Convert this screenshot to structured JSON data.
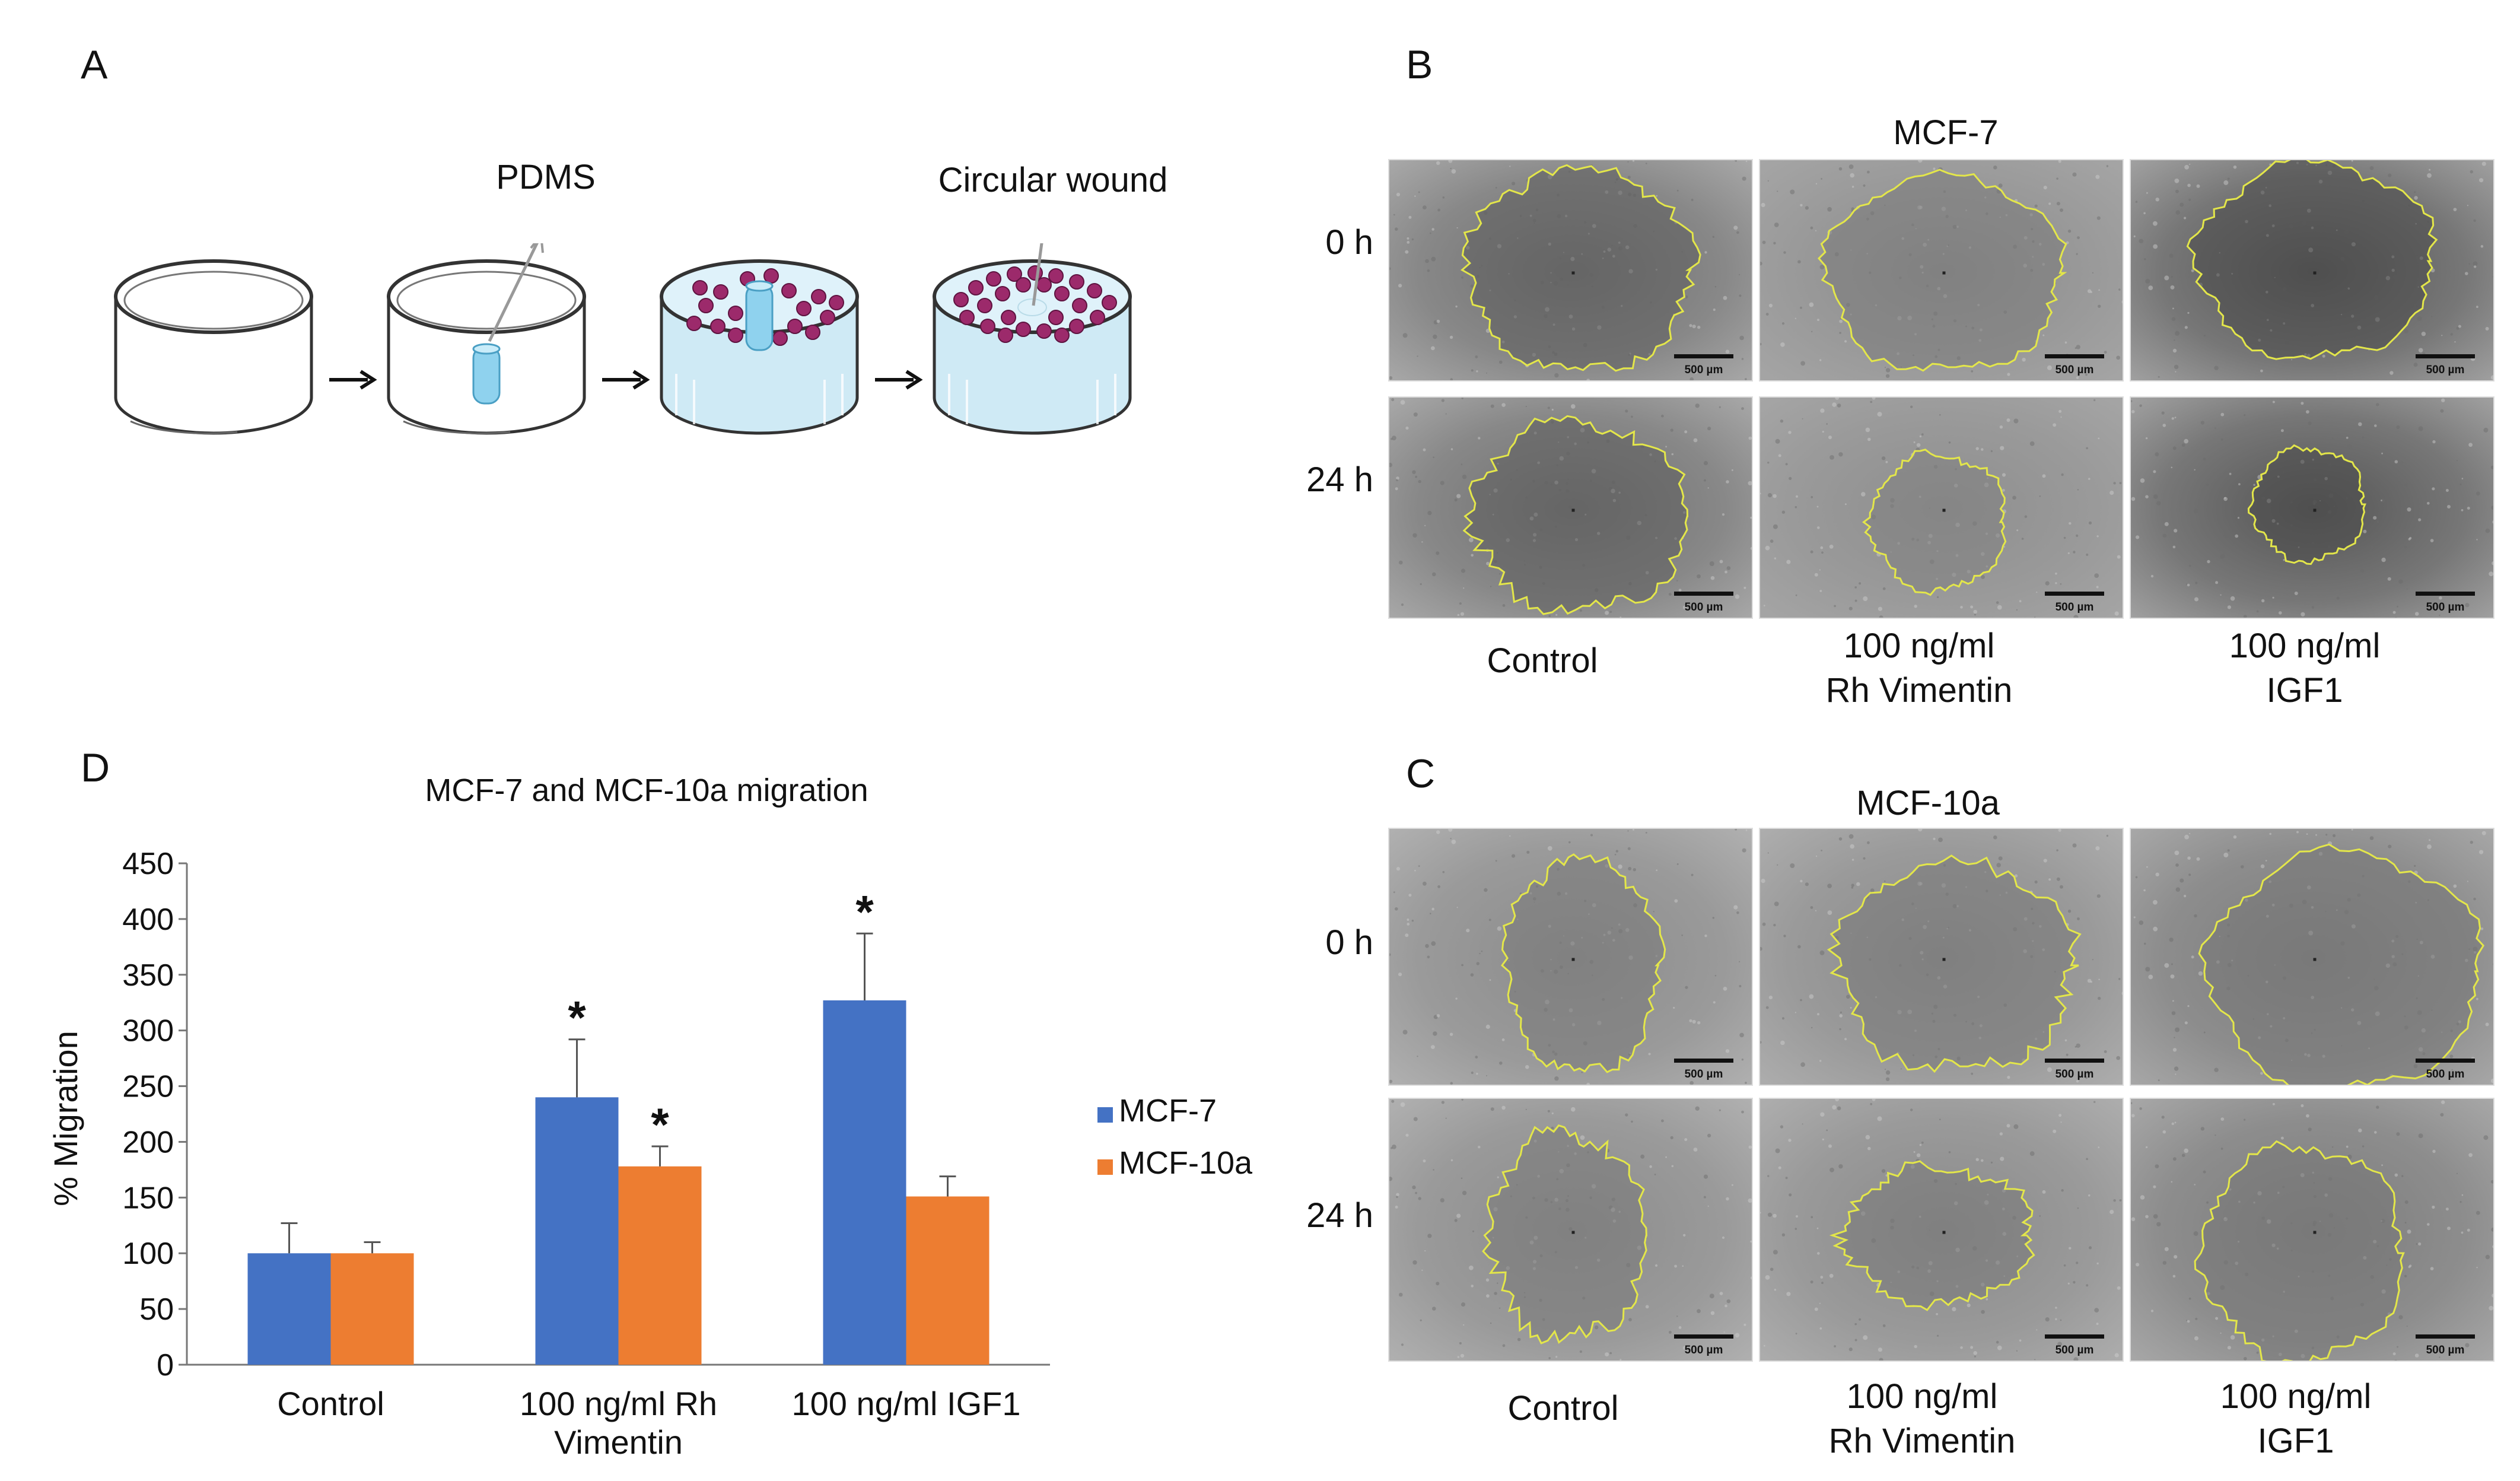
{
  "panels": {
    "A": {
      "letter": "A",
      "pdms_label": "PDMS",
      "wound_label": "Circular wound",
      "arrow_glyph": "→"
    },
    "B": {
      "letter": "B",
      "title": "MCF-7",
      "rows": [
        "0 h",
        "24 h"
      ],
      "columns": [
        {
          "line1": "Control",
          "line2": ""
        },
        {
          "line1": "100 ng/ml",
          "line2": "Rh Vimentin"
        },
        {
          "line1": "100 ng/ml",
          "line2": "IGF1"
        }
      ],
      "scale_bar": "500 µm"
    },
    "C": {
      "letter": "C",
      "title": "MCF-10a",
      "rows": [
        "0 h",
        "24 h"
      ],
      "columns": [
        {
          "line1": "Control",
          "line2": ""
        },
        {
          "line1": "100 ng/ml",
          "line2": "Rh Vimentin"
        },
        {
          "line1": "100 ng/ml",
          "line2": "IGF1"
        }
      ],
      "scale_bar": "500 µm"
    },
    "D": {
      "letter": "D"
    }
  },
  "chart_data": {
    "type": "bar",
    "title": "MCF-7 and MCF-10a migration",
    "ylabel": "% Migration",
    "xlabel": "",
    "ylim": [
      0,
      450
    ],
    "yticks": [
      0,
      50,
      100,
      150,
      200,
      250,
      300,
      350,
      400,
      450
    ],
    "categories": [
      {
        "line1": "Control",
        "line2": ""
      },
      {
        "line1": "100 ng/ml  Rh",
        "line2": "Vimentin"
      },
      {
        "line1": "100 ng/ml  IGF1",
        "line2": ""
      }
    ],
    "series": [
      {
        "name": "MCF-7",
        "color": "#4472C4",
        "values": [
          100,
          240,
          327
        ],
        "errors": [
          27,
          52,
          60
        ],
        "significant": [
          false,
          true,
          true
        ]
      },
      {
        "name": "MCF-10a",
        "color": "#ED7D31",
        "values": [
          100,
          178,
          151
        ],
        "errors": [
          10,
          18,
          18
        ],
        "significant": [
          false,
          true,
          false
        ]
      }
    ],
    "significance_marker": "*",
    "grid": false,
    "legend_position": "right"
  },
  "colors": {
    "wound_outline": "#e3e64a",
    "micrograph_bg": "#9a9a9a",
    "dish_fill": "#cfeaf5",
    "cell_color": "#9c2a6b",
    "pdms_color": "#8fd2ee"
  }
}
